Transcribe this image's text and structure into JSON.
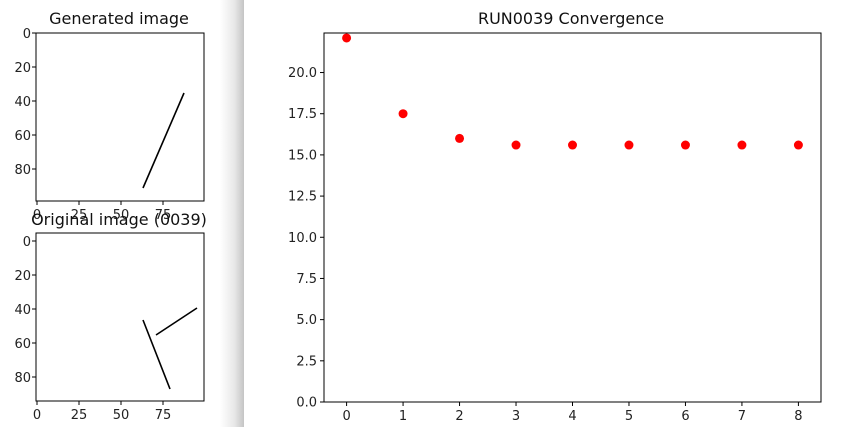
{
  "generated_image": {
    "title": "Generated image",
    "x_ticks": [
      "0",
      "25",
      "50",
      "75"
    ],
    "y_ticks": [
      "0",
      "20",
      "40",
      "60",
      "80"
    ]
  },
  "original_image": {
    "title": "Original image (0039)",
    "x_ticks": [
      "0",
      "25",
      "50",
      "75"
    ],
    "y_ticks": [
      "0",
      "20",
      "40",
      "60",
      "80"
    ]
  },
  "chart_data": {
    "type": "scatter",
    "title": "RUN0039 Convergence",
    "xlabel": "",
    "ylabel": "",
    "x": [
      0,
      1,
      2,
      3,
      4,
      5,
      6,
      7,
      8
    ],
    "y": [
      22.1,
      17.5,
      16.0,
      15.6,
      15.6,
      15.6,
      15.6,
      15.6,
      15.6
    ],
    "xlim": [
      -0.4,
      8.4
    ],
    "ylim": [
      0,
      22.4
    ],
    "x_ticks": [
      0,
      1,
      2,
      3,
      4,
      5,
      6,
      7,
      8
    ],
    "y_ticks": [
      0.0,
      2.5,
      5.0,
      7.5,
      10.0,
      12.5,
      15.0,
      17.5,
      20.0
    ],
    "marker_color": "#ff0000",
    "grid": false
  }
}
